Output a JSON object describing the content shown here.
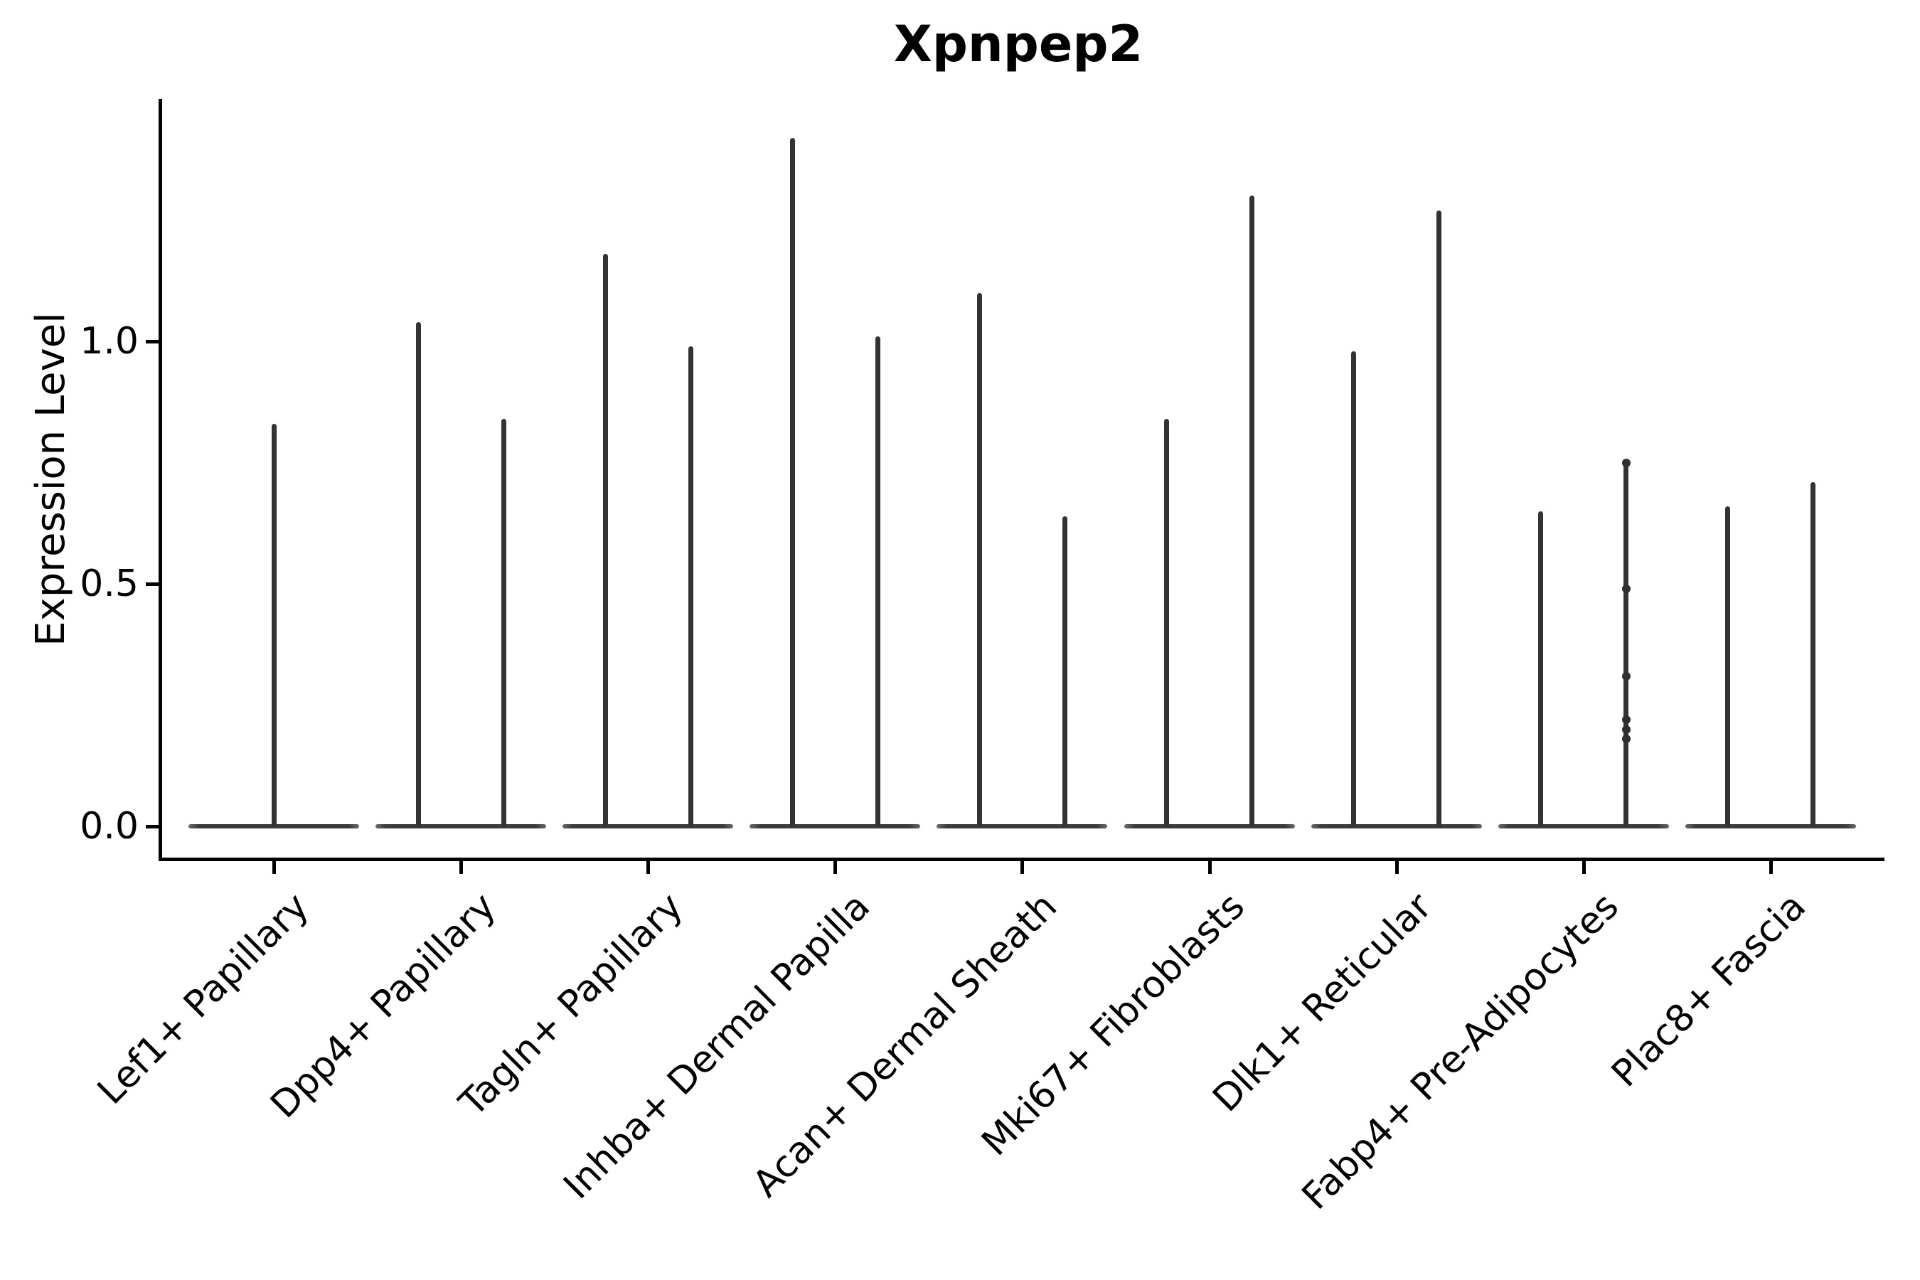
{
  "chart_data": {
    "type": "violin",
    "title": "Xpnpep2",
    "xlabel": "",
    "ylabel": "Expression Level",
    "ytick_labels": [
      "0.0",
      "0.5",
      "1.0"
    ],
    "ytick_values": [
      0.0,
      0.5,
      1.0
    ],
    "ylim": [
      -0.07,
      1.5
    ],
    "grid": false,
    "legend": "none",
    "description": "Stacked-violin style gene expression plot; each category shows violins collapsed to a wide flat base at 0 (most cells zero) with thin spikes rising to the maximum expressed values.",
    "categories": [
      "Lef1+ Papillary",
      "Dpp4+ Papillary",
      "Tagln+ Papillary",
      "Inhba+ Dermal Papilla",
      "Acan+ Dermal Sheath",
      "Mki67+ Fibroblasts",
      "Dlk1+ Reticular",
      "Fabp4+ Pre-Adipocytes",
      "Plac8+ Fascia"
    ],
    "groups": [
      {
        "category": "Lef1+ Papillary",
        "violins": [
          {
            "min": 0,
            "max": 0.83
          }
        ]
      },
      {
        "category": "Dpp4+ Papillary",
        "violins": [
          {
            "min": 0,
            "max": 1.04
          },
          {
            "min": 0,
            "max": 0.84
          }
        ]
      },
      {
        "category": "Tagln+ Papillary",
        "violins": [
          {
            "min": 0,
            "max": 1.18
          },
          {
            "min": 0,
            "max": 0.99
          }
        ]
      },
      {
        "category": "Inhba+ Dermal Papilla",
        "violins": [
          {
            "min": 0,
            "max": 1.42
          },
          {
            "min": 0,
            "max": 1.01
          }
        ]
      },
      {
        "category": "Acan+ Dermal Sheath",
        "violins": [
          {
            "min": 0,
            "max": 1.1
          },
          {
            "min": 0,
            "max": 0.64
          }
        ]
      },
      {
        "category": "Mki67+ Fibroblasts",
        "violins": [
          {
            "min": 0,
            "max": 0.84
          },
          {
            "min": 0,
            "max": 1.3
          }
        ]
      },
      {
        "category": "Dlk1+ Reticular",
        "violins": [
          {
            "min": 0,
            "max": 0.98
          },
          {
            "min": 0,
            "max": 1.27
          }
        ]
      },
      {
        "category": "Fabp4+ Pre-Adipocytes",
        "violins": [
          {
            "min": 0,
            "max": 0.65
          },
          {
            "min": 0,
            "max": 0.75,
            "points": [
              0.75,
              0.49,
              0.31,
              0.22,
              0.2,
              0.18
            ]
          }
        ]
      },
      {
        "category": "Plac8+ Fascia",
        "violins": [
          {
            "min": 0,
            "max": 0.66
          },
          {
            "min": 0,
            "max": 0.71
          }
        ]
      }
    ],
    "colors": {
      "violin_line": "#333333",
      "zero_base": "#3b3b3b",
      "axis": "#000000",
      "text": "#000000",
      "background": "#ffffff"
    }
  }
}
